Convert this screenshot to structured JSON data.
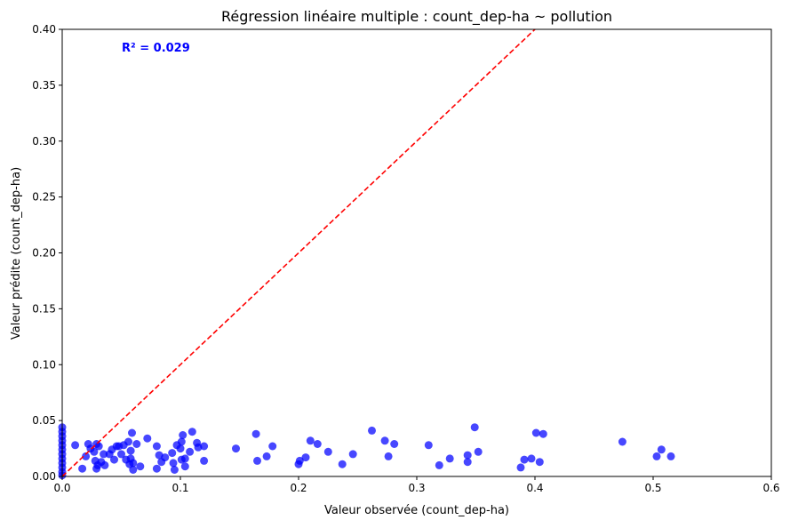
{
  "chart_data": {
    "type": "scatter",
    "title": "Régression linéaire multiple : count_dep-ha ~ pollution",
    "xlabel": "Valeur observée (count_dep-ha)",
    "ylabel": "Valeur prédite (count_dep-ha)",
    "xlim": [
      0,
      0.6
    ],
    "ylim": [
      0,
      0.4
    ],
    "x_ticks": [
      "0.0",
      "0.1",
      "0.2",
      "0.3",
      "0.4",
      "0.5",
      "0.6"
    ],
    "y_ticks": [
      "0.00",
      "0.05",
      "0.10",
      "0.15",
      "0.20",
      "0.25",
      "0.30",
      "0.35",
      "0.40"
    ],
    "x_tick_values": [
      0,
      0.1,
      0.2,
      0.3,
      0.4,
      0.5,
      0.6
    ],
    "y_tick_values": [
      0,
      0.05,
      0.1,
      0.15,
      0.2,
      0.25,
      0.3,
      0.35,
      0.4
    ],
    "annotation": "R² = 0.029",
    "annotation_position": "top-left",
    "grid": false,
    "point_color": "#0000ff",
    "reference_line": {
      "style": "dashed",
      "color": "#ff0000",
      "from": [
        0,
        0
      ],
      "to": [
        0.4,
        0.4
      ]
    },
    "points": [
      [
        0,
        0.001
      ],
      [
        0,
        0.004
      ],
      [
        0,
        0.008
      ],
      [
        0,
        0.012
      ],
      [
        0,
        0.016
      ],
      [
        0,
        0.02
      ],
      [
        0,
        0.024
      ],
      [
        0,
        0.028
      ],
      [
        0,
        0.032
      ],
      [
        0,
        0.036
      ],
      [
        0,
        0.04
      ],
      [
        0,
        0.044
      ],
      [
        0.011,
        0.028
      ],
      [
        0.017,
        0.007
      ],
      [
        0.02,
        0.018
      ],
      [
        0.022,
        0.029
      ],
      [
        0.024,
        0.025
      ],
      [
        0.027,
        0.022
      ],
      [
        0.028,
        0.014
      ],
      [
        0.029,
        0.029
      ],
      [
        0.029,
        0.007
      ],
      [
        0.03,
        0.01
      ],
      [
        0.031,
        0.027
      ],
      [
        0.033,
        0.013
      ],
      [
        0.035,
        0.02
      ],
      [
        0.036,
        0.01
      ],
      [
        0.04,
        0.02
      ],
      [
        0.042,
        0.024
      ],
      [
        0.044,
        0.015
      ],
      [
        0.046,
        0.027
      ],
      [
        0.048,
        0.027
      ],
      [
        0.05,
        0.02
      ],
      [
        0.052,
        0.028
      ],
      [
        0.054,
        0.015
      ],
      [
        0.056,
        0.031
      ],
      [
        0.057,
        0.011
      ],
      [
        0.058,
        0.016
      ],
      [
        0.058,
        0.023
      ],
      [
        0.059,
        0.039
      ],
      [
        0.06,
        0.012
      ],
      [
        0.06,
        0.006
      ],
      [
        0.063,
        0.029
      ],
      [
        0.066,
        0.009
      ],
      [
        0.072,
        0.034
      ],
      [
        0.08,
        0.027
      ],
      [
        0.08,
        0.007
      ],
      [
        0.082,
        0.019
      ],
      [
        0.084,
        0.013
      ],
      [
        0.087,
        0.017
      ],
      [
        0.093,
        0.021
      ],
      [
        0.094,
        0.012
      ],
      [
        0.095,
        0.006
      ],
      [
        0.097,
        0.028
      ],
      [
        0.1,
        0.025
      ],
      [
        0.101,
        0.031
      ],
      [
        0.101,
        0.015
      ],
      [
        0.102,
        0.037
      ],
      [
        0.104,
        0.016
      ],
      [
        0.104,
        0.009
      ],
      [
        0.108,
        0.022
      ],
      [
        0.11,
        0.04
      ],
      [
        0.114,
        0.03
      ],
      [
        0.115,
        0.026
      ],
      [
        0.12,
        0.027
      ],
      [
        0.12,
        0.014
      ],
      [
        0.147,
        0.025
      ],
      [
        0.164,
        0.038
      ],
      [
        0.165,
        0.014
      ],
      [
        0.173,
        0.018
      ],
      [
        0.178,
        0.027
      ],
      [
        0.2,
        0.011
      ],
      [
        0.201,
        0.014
      ],
      [
        0.206,
        0.017
      ],
      [
        0.21,
        0.032
      ],
      [
        0.216,
        0.029
      ],
      [
        0.225,
        0.022
      ],
      [
        0.237,
        0.011
      ],
      [
        0.246,
        0.02
      ],
      [
        0.262,
        0.041
      ],
      [
        0.273,
        0.032
      ],
      [
        0.276,
        0.018
      ],
      [
        0.281,
        0.029
      ],
      [
        0.31,
        0.028
      ],
      [
        0.319,
        0.01
      ],
      [
        0.328,
        0.016
      ],
      [
        0.343,
        0.013
      ],
      [
        0.343,
        0.019
      ],
      [
        0.349,
        0.044
      ],
      [
        0.352,
        0.022
      ],
      [
        0.388,
        0.008
      ],
      [
        0.391,
        0.015
      ],
      [
        0.397,
        0.016
      ],
      [
        0.401,
        0.039
      ],
      [
        0.404,
        0.013
      ],
      [
        0.407,
        0.038
      ],
      [
        0.474,
        0.031
      ],
      [
        0.503,
        0.018
      ],
      [
        0.507,
        0.024
      ],
      [
        0.515,
        0.018
      ]
    ]
  }
}
